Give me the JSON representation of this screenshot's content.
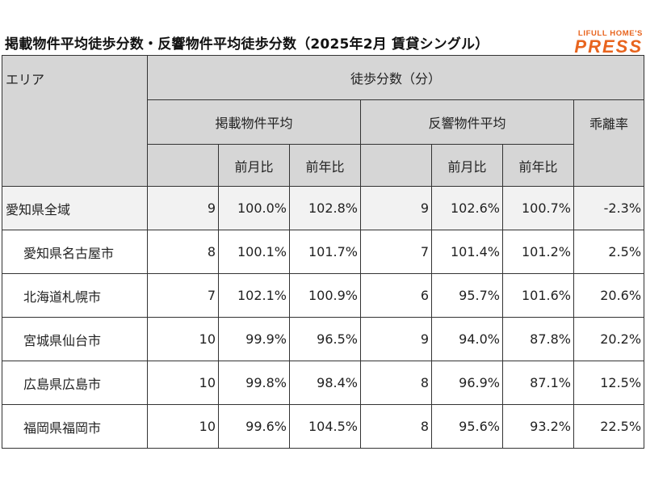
{
  "title": "掲載物件平均徒歩分数・反響物件平均徒歩分数（2025年2月 賃貸シングル）",
  "logo": {
    "top": "LIFULL HOME'S",
    "main": "PRESS",
    "color": "#e8641e"
  },
  "table": {
    "header": {
      "area": "エリア",
      "walk_minutes": "徒歩分数（分）",
      "listed_avg": "掲載物件平均",
      "response_avg": "反響物件平均",
      "divergence": "乖離率",
      "mom": "前月比",
      "yoy": "前年比"
    },
    "rows": [
      {
        "area": "愛知県全域",
        "listed": "9",
        "listed_mom": "100.0%",
        "listed_yoy": "102.8%",
        "resp": "9",
        "resp_mom": "102.6%",
        "resp_yoy": "100.7%",
        "divergence": "-2.3%"
      },
      {
        "area": "愛知県名古屋市",
        "listed": "8",
        "listed_mom": "100.1%",
        "listed_yoy": "101.7%",
        "resp": "7",
        "resp_mom": "101.4%",
        "resp_yoy": "101.2%",
        "divergence": "2.5%"
      },
      {
        "area": "北海道札幌市",
        "listed": "7",
        "listed_mom": "102.1%",
        "listed_yoy": "100.9%",
        "resp": "6",
        "resp_mom": "95.7%",
        "resp_yoy": "101.6%",
        "divergence": "20.6%"
      },
      {
        "area": "宮城県仙台市",
        "listed": "10",
        "listed_mom": "99.9%",
        "listed_yoy": "96.5%",
        "resp": "9",
        "resp_mom": "94.0%",
        "resp_yoy": "87.8%",
        "divergence": "20.2%"
      },
      {
        "area": "広島県広島市",
        "listed": "10",
        "listed_mom": "99.8%",
        "listed_yoy": "98.4%",
        "resp": "8",
        "resp_mom": "96.9%",
        "resp_yoy": "87.1%",
        "divergence": "12.5%"
      },
      {
        "area": "福岡県福岡市",
        "listed": "10",
        "listed_mom": "99.6%",
        "listed_yoy": "104.5%",
        "resp": "8",
        "resp_mom": "95.6%",
        "resp_yoy": "93.2%",
        "divergence": "22.5%"
      }
    ]
  }
}
